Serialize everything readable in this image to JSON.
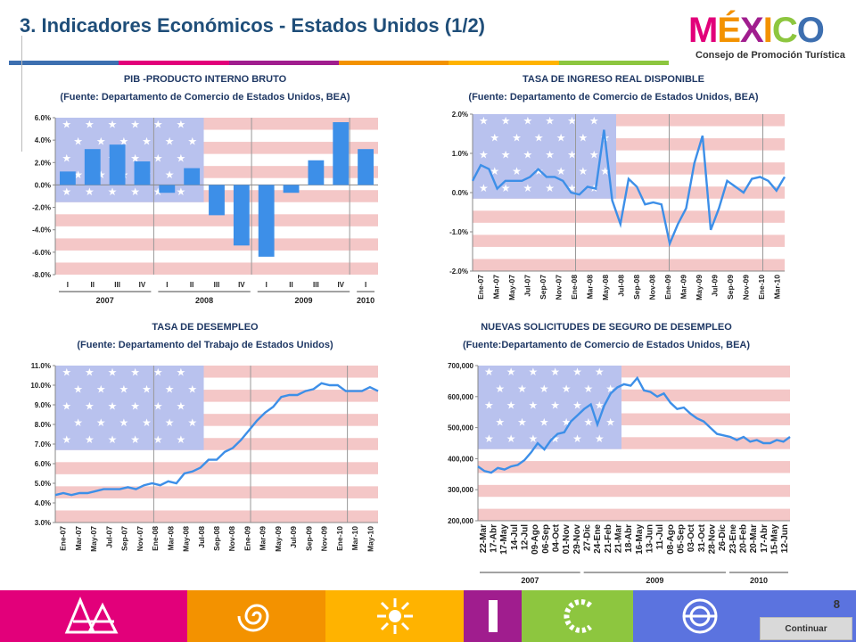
{
  "page": {
    "title": "3. Indicadores Económicos - Estados Unidos (1/2)",
    "page_number": "8",
    "continue_label": "Continuar",
    "logo_text": "MÉXICO",
    "logo_subtitle": "Consejo de Promoción Turística"
  },
  "colors": {
    "title": "#1f4e79",
    "bar": "#3d8fe8",
    "line": "#3d8fe8",
    "stripe": "#f4c7c7",
    "canton": "#b9c2ee",
    "footer": [
      "#e2007a",
      "#f39200",
      "#ffb300",
      "#a01d8e",
      "#8dc63f",
      "#5b73df"
    ]
  },
  "icons": [
    "pyramid-icon",
    "spiral-icon",
    "sun-icon",
    "pillar-icon",
    "serpent-icon",
    "aztec-calendar-icon"
  ],
  "chart_data": [
    {
      "type": "bar",
      "title": "PIB -PRODUCTO INTERNO BRUTO",
      "subtitle": "(Fuente: Departamento de Comercio de Estados Unidos, BEA)",
      "categories": [
        "I",
        "II",
        "III",
        "IV",
        "I",
        "II",
        "III",
        "IV",
        "I",
        "II",
        "III",
        "IV",
        "I"
      ],
      "groups": [
        {
          "label": "2007",
          "span": 4
        },
        {
          "label": "2008",
          "span": 4
        },
        {
          "label": "2009",
          "span": 4
        },
        {
          "label": "2010",
          "span": 1
        }
      ],
      "values": [
        1.2,
        3.2,
        3.6,
        2.1,
        -0.7,
        1.5,
        -2.7,
        -5.4,
        -6.4,
        -0.7,
        2.2,
        5.6,
        3.2
      ],
      "ylim": [
        -8,
        6
      ],
      "yticks": [
        "6.0%",
        "4.0%",
        "2.0%",
        "0.0%",
        "-2.0%",
        "-4.0%",
        "-6.0%",
        "-8.0%"
      ]
    },
    {
      "type": "line",
      "title": "TASA DE INGRESO REAL DISPONIBLE",
      "subtitle": "(Fuente: Departamento de Comercio de Estados Unidos, BEA)",
      "xticks": [
        "Ene-07",
        "Mar-07",
        "May-07",
        "Jul-07",
        "Sep-07",
        "Nov-07",
        "Ene-08",
        "Mar-08",
        "May-08",
        "Jul-08",
        "Sep-08",
        "Nov-08",
        "Ene-09",
        "Mar-09",
        "May-09",
        "Jul-09",
        "Sep-09",
        "Nov-09",
        "Ene-10",
        "Mar-10"
      ],
      "values": [
        0.3,
        0.7,
        0.6,
        0.1,
        0.3,
        0.3,
        0.3,
        0.4,
        0.6,
        0.4,
        0.4,
        0.3,
        0.0,
        -0.05,
        0.15,
        0.1,
        1.6,
        -0.2,
        -0.8,
        0.35,
        0.15,
        -0.3,
        -0.25,
        -0.3,
        -1.3,
        -0.8,
        -0.4,
        0.75,
        1.45,
        -0.95,
        -0.4,
        0.3,
        0.15,
        0.0,
        0.35,
        0.4,
        0.3,
        0.05,
        0.4
      ],
      "ylim": [
        -2,
        2
      ],
      "yticks": [
        "2.0%",
        "1.0%",
        "0.0%",
        "-1.0%",
        "-2.0%"
      ]
    },
    {
      "type": "line",
      "title": "TASA DE DESEMPLEO",
      "subtitle": "(Fuente: Departamento del  Trabajo de Estados Unidos)",
      "xticks": [
        "Ene-07",
        "Mar-07",
        "May-07",
        "Jul-07",
        "Sep-07",
        "Nov-07",
        "Ene-08",
        "Mar-08",
        "May-08",
        "Jul-08",
        "Sep-08",
        "Nov-08",
        "Ene-09",
        "Mar-09",
        "May-09",
        "Jul-09",
        "Sep-09",
        "Nov-09",
        "Ene-10",
        "Mar-10",
        "May-10"
      ],
      "values": [
        4.4,
        4.5,
        4.4,
        4.5,
        4.5,
        4.6,
        4.7,
        4.7,
        4.7,
        4.8,
        4.7,
        4.9,
        5.0,
        4.9,
        5.1,
        5.0,
        5.5,
        5.6,
        5.8,
        6.2,
        6.2,
        6.6,
        6.8,
        7.2,
        7.7,
        8.2,
        8.6,
        8.9,
        9.4,
        9.5,
        9.5,
        9.7,
        9.8,
        10.1,
        10.0,
        10.0,
        9.7,
        9.7,
        9.7,
        9.9,
        9.7
      ],
      "ylim": [
        3,
        11
      ],
      "yticks": [
        "11.0%",
        "10.0%",
        "9.0%",
        "8.0%",
        "7.0%",
        "6.0%",
        "5.0%",
        "4.0%",
        "3.0%"
      ]
    },
    {
      "type": "line",
      "title": "NUEVAS SOLICITUDES DE SEGURO DE DESEMPLEO",
      "subtitle": "(Fuente:Departamento de Comercio de Estados Unidos, BEA)",
      "xticks": [
        "22-Mar",
        "17-Abr",
        "17-May",
        "14-Jul",
        "12-Jul",
        "09-Ago",
        "06-Sep",
        "04-Oct",
        "01-Nov",
        "29-Nov",
        "27-Dic",
        "24-Ene",
        "21-Feb",
        "21-Mar",
        "18-Abr",
        "16-May",
        "13-Jun",
        "11-Jul",
        "08-Ago",
        "05-Sep",
        "03-Oct",
        "31-Oct",
        "28-Nov",
        "26-Dic",
        "23-Ene",
        "20-Feb",
        "20-Mar",
        "17-Abr",
        "15-May",
        "12-Jun"
      ],
      "groups": [
        {
          "label": "2007",
          "span": 10
        },
        {
          "label": "2009",
          "span": 14
        },
        {
          "label": "2010",
          "span": 6
        }
      ],
      "values": [
        375000,
        360000,
        355000,
        370000,
        365000,
        375000,
        380000,
        395000,
        420000,
        450000,
        430000,
        460000,
        480000,
        485000,
        520000,
        540000,
        560000,
        575000,
        510000,
        570000,
        610000,
        630000,
        640000,
        635000,
        660000,
        620000,
        615000,
        600000,
        610000,
        580000,
        560000,
        565000,
        545000,
        530000,
        520000,
        500000,
        480000,
        475000,
        470000,
        460000,
        470000,
        455000,
        460000,
        450000,
        450000,
        460000,
        455000,
        470000
      ],
      "ylim": [
        200000,
        700000
      ],
      "yticks": [
        "700,000",
        "600,000",
        "500,000",
        "400,000",
        "300,000",
        "200,000"
      ]
    }
  ]
}
